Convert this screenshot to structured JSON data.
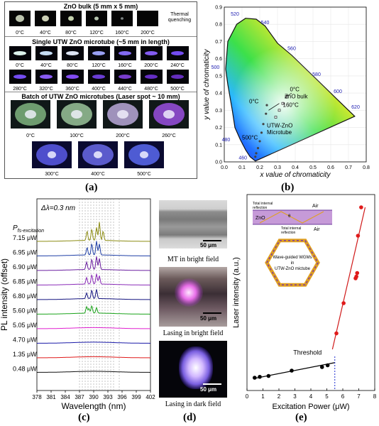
{
  "panel_a": {
    "label": "(a)",
    "section1": {
      "title": "ZnO bulk (5 mm x 5 mm)",
      "temps": [
        "0°C",
        "40°C",
        "80°C",
        "120°C",
        "160°C",
        "200°C"
      ],
      "note_line1": "Thermal",
      "note_line2": "quenching"
    },
    "section2": {
      "title": "Single UTW ZnO microtube (~5 mm in length)",
      "row1": [
        "0°C",
        "40°C",
        "80°C",
        "120°C",
        "160°C",
        "200°C",
        "240°C"
      ],
      "row2": [
        "280°C",
        "320°C",
        "360°C",
        "400°C",
        "440°C",
        "480°C",
        "500°C"
      ]
    },
    "section3": {
      "title": "Batch of UTW ZnO microtubes (Laser spot ~ 10 mm)",
      "row1": [
        "0°C",
        "100°C",
        "200°C",
        "260°C"
      ],
      "row2": [
        "300°C",
        "400°C",
        "500°C"
      ]
    }
  },
  "panel_b": {
    "label": "(b)",
    "xlabel": "x value of chromaticity",
    "ylabel": "y value of chromaticity",
    "xticks": [
      "0.0",
      "0.1",
      "0.2",
      "0.3",
      "0.4",
      "0.5",
      "0.6",
      "0.7",
      "0.8"
    ],
    "yticks": [
      "0.0",
      "0.1",
      "0.2",
      "0.3",
      "0.4",
      "0.5",
      "0.6",
      "0.7",
      "0.8",
      "0.9"
    ],
    "wavelengths": [
      "460",
      "480",
      "500",
      "520",
      "540",
      "560",
      "580",
      "600",
      "620"
    ],
    "annotations": {
      "zero_c_a": "0°C",
      "zero_c_b": "0°C",
      "zno_bulk": "ZnO bulk",
      "c160": "160°C",
      "c500": "500°C",
      "utw_line1": "UTW-ZnO",
      "utw_line2": "Microtube"
    }
  },
  "panel_c": {
    "label": "(c)",
    "delta": "Δλ=0.3 nm",
    "pfs_main": "P",
    "pfs_sub": "fs-excitation",
    "ylabel": "PL intensity (offset)",
    "xlabel": "Wavelength (nm)",
    "xticks": [
      "378",
      "381",
      "384",
      "387",
      "390",
      "393",
      "396",
      "399",
      "402"
    ],
    "series": [
      {
        "label": "7.15 μW",
        "color": "#8c8c14"
      },
      {
        "label": "6.95 μW",
        "color": "#1f3fa6"
      },
      {
        "label": "6.90 μW",
        "color": "#6a1fa0"
      },
      {
        "label": "6.85 μW",
        "color": "#8a2bb8"
      },
      {
        "label": "6.80 μW",
        "color": "#141480"
      },
      {
        "label": "5.60 μW",
        "color": "#1aa31a"
      },
      {
        "label": "5.05 μW",
        "color": "#e020d0"
      },
      {
        "label": "4.70 μW",
        "color": "#1a1aa8"
      },
      {
        "label": "1.35 μW",
        "color": "#e01a1a"
      },
      {
        "label": "0.48 μW",
        "color": "#111111"
      }
    ]
  },
  "panel_d": {
    "label": "(d)",
    "scale": "50 μm",
    "cap1": "MT in bright field",
    "cap2": "Lasing in bright field",
    "cap3": "Lasing in dark field"
  },
  "panel_e": {
    "label": "(e)",
    "ylabel": "Laser intensity (a.u.)",
    "xlabel": "Excitation Power (μW)",
    "xticks": [
      "0",
      "1",
      "2",
      "3",
      "4",
      "5",
      "6",
      "7",
      "8"
    ],
    "threshold": "Threshold",
    "inset": {
      "air_top": "Air",
      "air_bottom": "Air",
      "zno": "ZnO",
      "theta": "θ",
      "tir_top_1": "Total internal",
      "tir_top_2": "reflection",
      "tir_bot_1": "Total internal",
      "tir_bot_2": "reflection",
      "wgm1": "Wave-guided WGMs",
      "wgm2": "in",
      "wgm3": "UTW-ZnO mictube"
    }
  },
  "chart_data": [
    {
      "type": "line",
      "title": "",
      "xlabel": "Excitation Power (μW)",
      "ylabel": "Laser intensity (a.u.)",
      "xlim": [
        0,
        8
      ],
      "series": [
        {
          "x": [
            0.48,
            0.8,
            1.35,
            2.8,
            4.7,
            5.05
          ],
          "y": [
            0.04,
            0.045,
            0.05,
            0.08,
            0.1,
            0.11
          ]
        },
        {
          "x": [
            5.6,
            6.05,
            6.8,
            6.85,
            6.9,
            6.95,
            7.15
          ],
          "y": [
            0.29,
            0.46,
            0.6,
            0.61,
            0.63,
            0.84,
            1.0
          ]
        }
      ]
    }
  ]
}
